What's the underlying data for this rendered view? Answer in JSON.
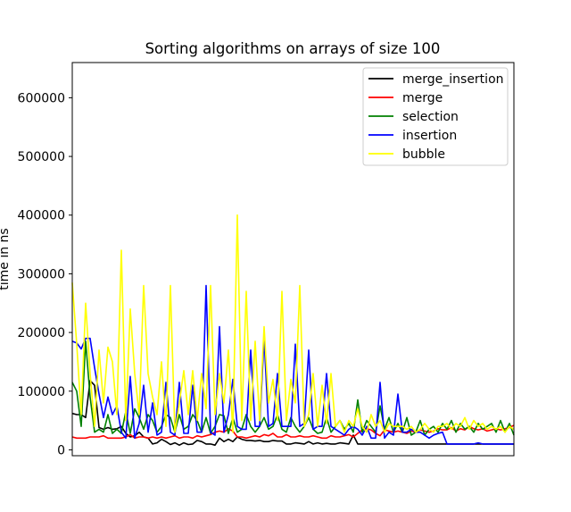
{
  "chart_data": {
    "type": "line",
    "title": "Sorting algorithms on arrays of size 100",
    "xlabel": "",
    "ylabel": "time in ns",
    "xlim": [
      0,
      99
    ],
    "ylim": [
      -10000,
      660000
    ],
    "yticks": [
      0,
      100000,
      200000,
      300000,
      400000,
      500000,
      600000
    ],
    "ytick_labels": [
      "0",
      "100000",
      "200000",
      "300000",
      "400000",
      "500000",
      "600000"
    ],
    "x_ticks_shown": false,
    "grid": false,
    "legend_position": "top-right",
    "series": [
      {
        "name": "merge_insertion",
        "color": "#000000",
        "values": [
          62000,
          60000,
          60000,
          55000,
          118000,
          110000,
          38000,
          35000,
          38000,
          35000,
          36000,
          40000,
          28000,
          22000,
          24000,
          30000,
          22000,
          20000,
          10000,
          12000,
          18000,
          14000,
          9000,
          12000,
          8000,
          12000,
          9000,
          10000,
          16000,
          14000,
          10000,
          10000,
          8000,
          20000,
          14000,
          18000,
          14000,
          22000,
          18000,
          16000,
          16000,
          15000,
          16000,
          14000,
          14000,
          16000,
          15000,
          15000,
          10000,
          10000,
          12000,
          11000,
          10000,
          14000,
          10000,
          12000,
          10000,
          11000,
          10000,
          10000,
          12000,
          11000,
          10000,
          25000,
          10000,
          10000,
          10000,
          10000,
          10000,
          10000,
          10000,
          10000,
          10000,
          10000,
          10000,
          10000,
          10000,
          10000,
          10000,
          10000,
          10000,
          10000,
          10000,
          10000,
          10000,
          10000,
          10000,
          10000,
          10000,
          10000,
          10000,
          10000,
          10000,
          10000,
          10000,
          10000,
          10000,
          10000,
          10000,
          10000
        ]
      },
      {
        "name": "merge",
        "color": "#ff0000",
        "values": [
          22000,
          20000,
          20000,
          20000,
          22000,
          22000,
          22000,
          24000,
          20000,
          20000,
          20000,
          20000,
          22000,
          26000,
          20000,
          22000,
          22000,
          20000,
          22000,
          20000,
          22000,
          20000,
          22000,
          24000,
          20000,
          22000,
          22000,
          20000,
          24000,
          22000,
          24000,
          26000,
          30000,
          32000,
          30000,
          36000,
          32000,
          22000,
          22000,
          20000,
          22000,
          24000,
          22000,
          26000,
          24000,
          28000,
          22000,
          22000,
          26000,
          22000,
          22000,
          24000,
          22000,
          22000,
          24000,
          22000,
          20000,
          20000,
          24000,
          22000,
          22000,
          24000,
          26000,
          22000,
          28000,
          34000,
          36000,
          34000,
          28000,
          24000,
          34000,
          32000,
          30000,
          32000,
          30000,
          28000,
          32000,
          30000,
          34000,
          32000,
          30000,
          32000,
          36000,
          34000,
          34000,
          38000,
          32000,
          36000,
          34000,
          40000,
          36000,
          34000,
          36000,
          32000,
          34000,
          36000,
          34000,
          36000,
          38000,
          42000
        ]
      },
      {
        "name": "selection",
        "color": "#008000",
        "values": [
          115000,
          100000,
          40000,
          185000,
          90000,
          30000,
          35000,
          30000,
          60000,
          28000,
          35000,
          28000,
          65000,
          28000,
          70000,
          55000,
          35000,
          60000,
          50000,
          30000,
          40000,
          60000,
          55000,
          30000,
          60000,
          35000,
          40000,
          60000,
          50000,
          30000,
          55000,
          28000,
          40000,
          60000,
          58000,
          28000,
          55000,
          30000,
          35000,
          60000,
          40000,
          30000,
          40000,
          55000,
          35000,
          40000,
          60000,
          35000,
          30000,
          55000,
          40000,
          30000,
          40000,
          55000,
          35000,
          28000,
          30000,
          55000,
          30000,
          40000,
          50000,
          35000,
          45000,
          30000,
          85000,
          30000,
          50000,
          40000,
          30000,
          75000,
          35000,
          55000,
          30000,
          45000,
          30000,
          55000,
          25000,
          30000,
          50000,
          25000,
          35000,
          40000,
          30000,
          45000,
          35000,
          50000,
          30000,
          45000,
          35000,
          40000,
          30000,
          45000,
          35000,
          40000,
          45000,
          30000,
          50000,
          30000,
          45000,
          25000
        ]
      },
      {
        "name": "insertion",
        "color": "#0000ff",
        "values": [
          185000,
          182000,
          172000,
          190000,
          190000,
          140000,
          95000,
          55000,
          90000,
          60000,
          75000,
          30000,
          20000,
          125000,
          20000,
          45000,
          110000,
          30000,
          80000,
          25000,
          30000,
          115000,
          30000,
          25000,
          115000,
          28000,
          28000,
          110000,
          30000,
          30000,
          280000,
          30000,
          25000,
          210000,
          30000,
          60000,
          120000,
          40000,
          35000,
          35000,
          170000,
          40000,
          40000,
          190000,
          40000,
          45000,
          130000,
          40000,
          40000,
          40000,
          180000,
          40000,
          45000,
          170000,
          35000,
          40000,
          40000,
          130000,
          40000,
          35000,
          30000,
          25000,
          35000,
          40000,
          35000,
          25000,
          40000,
          20000,
          20000,
          115000,
          20000,
          30000,
          25000,
          95000,
          30000,
          30000,
          35000,
          30000,
          30000,
          25000,
          20000,
          25000,
          28000,
          30000,
          10000,
          10000,
          10000,
          10000,
          10000,
          10000,
          10000,
          12000,
          10000,
          10000,
          10000,
          10000,
          10000,
          10000,
          10000,
          10000
        ]
      },
      {
        "name": "bubble",
        "color": "#ffff00",
        "values": [
          285000,
          180000,
          60000,
          250000,
          130000,
          40000,
          170000,
          80000,
          175000,
          150000,
          60000,
          340000,
          50000,
          240000,
          130000,
          60000,
          280000,
          130000,
          90000,
          60000,
          150000,
          40000,
          280000,
          30000,
          80000,
          135000,
          60000,
          135000,
          50000,
          130000,
          70000,
          280000,
          60000,
          130000,
          80000,
          170000,
          30000,
          400000,
          50000,
          270000,
          50000,
          185000,
          50000,
          210000,
          80000,
          120000,
          50000,
          270000,
          50000,
          120000,
          80000,
          280000,
          40000,
          60000,
          130000,
          40000,
          110000,
          45000,
          130000,
          40000,
          50000,
          30000,
          50000,
          40000,
          70000,
          40000,
          30000,
          60000,
          40000,
          50000,
          30000,
          45000,
          40000,
          40000,
          40000,
          35000,
          40000,
          30000,
          35000,
          45000,
          35000,
          30000,
          40000,
          40000,
          45000,
          35000,
          45000,
          40000,
          55000,
          35000,
          50000,
          40000,
          45000,
          35000,
          40000,
          35000,
          40000,
          30000,
          40000,
          35000
        ]
      }
    ]
  }
}
